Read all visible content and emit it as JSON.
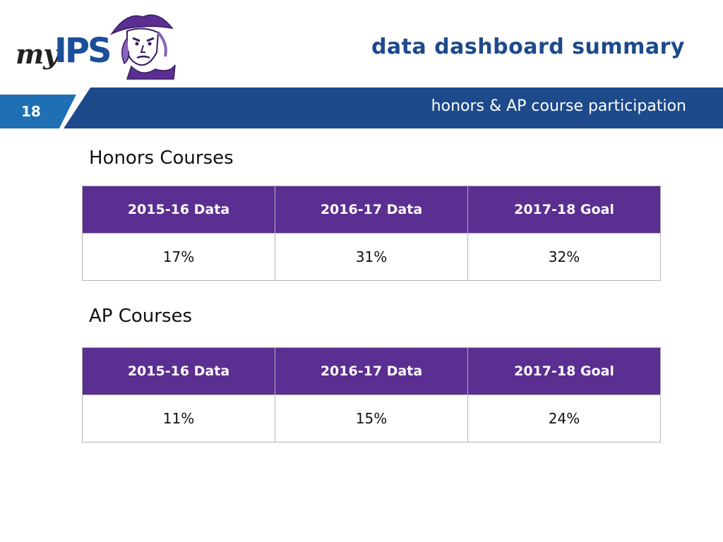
{
  "logo": {
    "prefix": "my",
    "name": "IPS"
  },
  "header": {
    "title": "data dashboard summary",
    "subtitle": "honors & AP course participation",
    "page_number": "18"
  },
  "colors": {
    "brand_blue": "#1d4a8a",
    "header_purple": "#5b2e91",
    "accent_blue": "#1f6fb5"
  },
  "honors": {
    "heading": "Honors Courses",
    "columns": [
      "2015-16 Data",
      "2016-17 Data",
      "2017-18 Goal"
    ],
    "values": [
      "17%",
      "31%",
      "32%"
    ]
  },
  "ap": {
    "heading": "AP Courses",
    "columns": [
      "2015-16 Data",
      "2016-17 Data",
      "2017-18 Goal"
    ],
    "values": [
      "11%",
      "15%",
      "24%"
    ]
  }
}
